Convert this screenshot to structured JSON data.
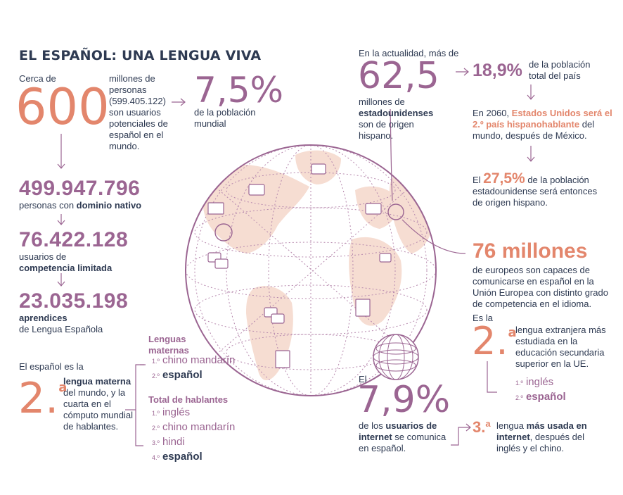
{
  "title": "EL ESPAÑOL: UNA LENGUA VIVA",
  "colors": {
    "navy": "#2e3a52",
    "purple": "#9b6592",
    "salmon": "#e3866c",
    "land": "#f6ddd2"
  },
  "world": {
    "cerca_de": "Cerca de",
    "big_600": "600",
    "users_text": "millones de personas (599.405.122) son usuarios potenciales de español en el mundo.",
    "pct_world": "7,5%",
    "pct_world_text": "de la población mundial"
  },
  "native": {
    "number": "499.947.796",
    "text": "personas con ",
    "text_bold": "dominio nativo"
  },
  "limited": {
    "number": "76.422.128",
    "text": "usuarios de",
    "text_bold": "competencia limitada"
  },
  "learners": {
    "number": "23.035.198",
    "text_bold": "aprendices",
    "text": "de Lengua Española"
  },
  "mother_tongue": {
    "intro": "El español es la",
    "rank": "2.",
    "rank_sup": "a",
    "bold": "lengua materna",
    "text": "del mundo, y la cuarta en el cómputo mundial de hablantes."
  },
  "rankings": {
    "maternas_title": "Lenguas maternas",
    "maternas": [
      {
        "ord": "1.º",
        "label": "chino mandarín",
        "highlight": false
      },
      {
        "ord": "2.º",
        "label": "español",
        "highlight": true
      }
    ],
    "total_title": "Total de hablantes",
    "total": [
      {
        "ord": "1.º",
        "label": "inglés",
        "highlight": false
      },
      {
        "ord": "2.º",
        "label": "chino mandarín",
        "highlight": false
      },
      {
        "ord": "3.º",
        "label": "hindi",
        "highlight": false
      },
      {
        "ord": "4.º",
        "label": "español",
        "highlight": true
      }
    ]
  },
  "usa": {
    "intro": "En la actualidad, más de",
    "big": "62,5",
    "text1": "millones de",
    "text_bold": "estadounidenses",
    "text2": " son de origen hispano.",
    "pct": "18,9%",
    "pct_text": "de la población total del país",
    "y2060_a": "En 2060, ",
    "y2060_bold": "Estados Unidos será el 2.º país hispanohablante",
    "y2060_b": " del mundo, después de México.",
    "el": "El ",
    "pct2": "27,5%",
    "pct2_text": " de la población estadounidense será entonces de origen hispano."
  },
  "europe": {
    "big": "76 millones",
    "text": "de europeos son capaces de comunicarse en español en la Unión Europea con distinto grado de competencia en el idioma."
  },
  "foreign": {
    "intro": "Es la",
    "rank": "2.",
    "rank_sup": "a",
    "text": "lengua extranjera más estudiada en la educación secundaria superior en la UE.",
    "list": [
      {
        "ord": "1.º",
        "label": "inglés",
        "highlight": false
      },
      {
        "ord": "2.º",
        "label": "español",
        "highlight": true
      }
    ]
  },
  "internet": {
    "intro": "El",
    "big": "7,9%",
    "text1": "de los ",
    "bold1": "usuarios de internet",
    "text2": " se comunica en español.",
    "rank": "3.",
    "rank_sup": "a",
    "text3": "lengua ",
    "bold2": "más usada en internet",
    "text4": ", después del inglés y el chino."
  }
}
